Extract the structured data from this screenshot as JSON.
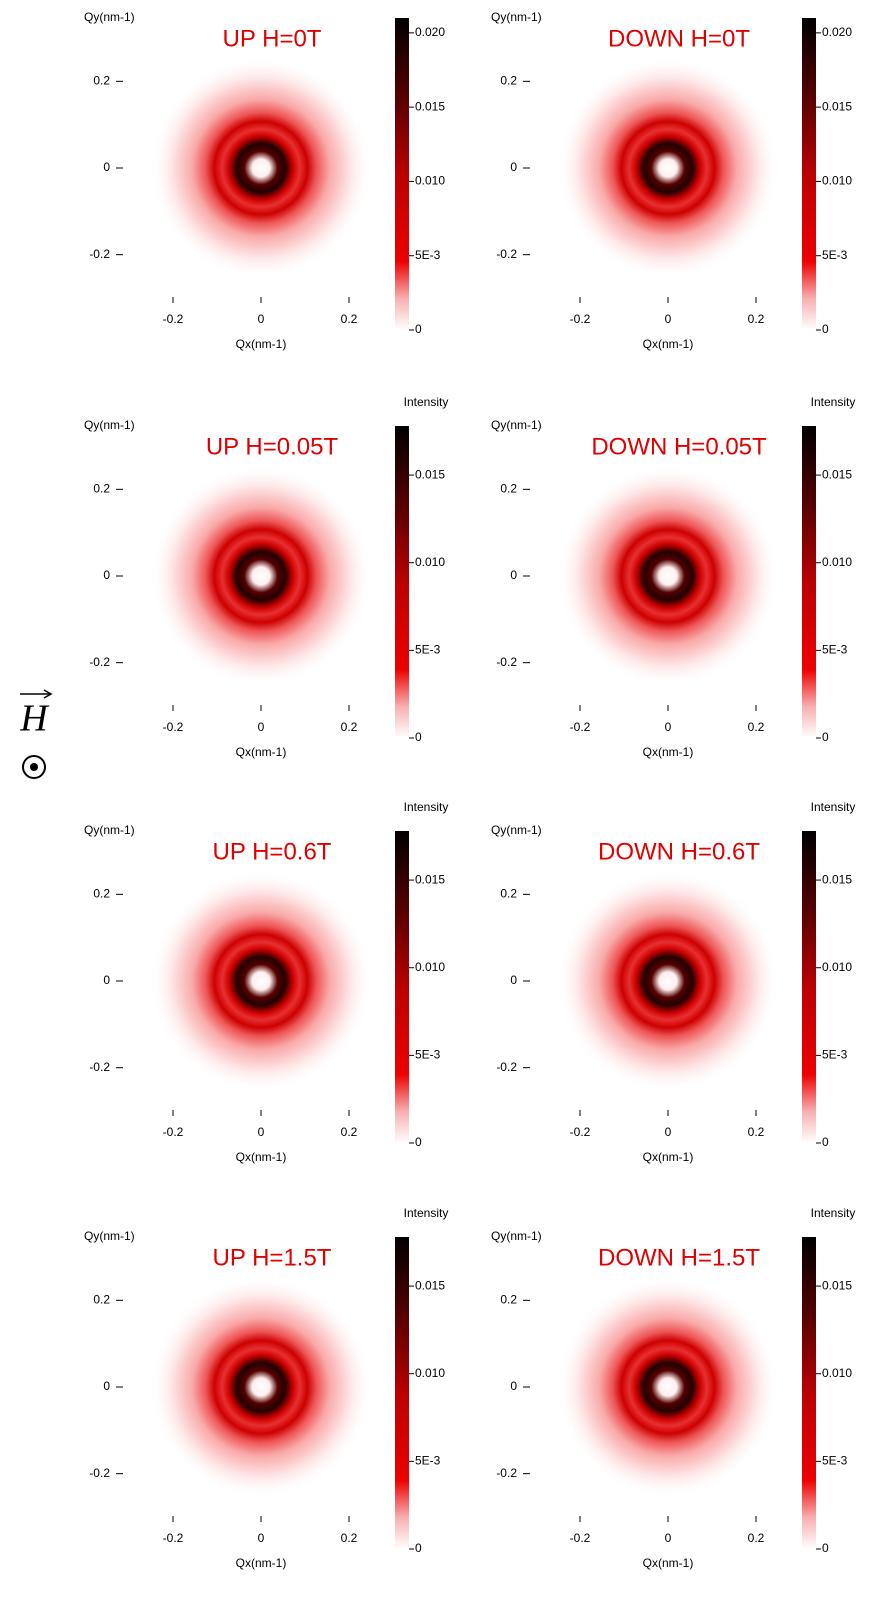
{
  "chart_data": [
    {
      "type": "heatmap",
      "title": "UP H=0T",
      "xlabel": "Qx(nm-1)",
      "ylabel": "Qy(nm-1)",
      "xlim": [
        -0.3,
        0.3
      ],
      "ylim": [
        -0.3,
        0.3
      ],
      "xticks": [
        -0.2,
        0,
        0.2
      ],
      "yticks": [
        -0.2,
        0,
        0.2
      ],
      "colorbar": {
        "lim": [
          0,
          0.021
        ],
        "ticks": [
          0,
          {
            "value": 0.005,
            "label": "5E-3"
          },
          {
            "value": 0.01,
            "label": "0.010"
          },
          {
            "value": 0.015,
            "label": "0.015"
          },
          {
            "value": 0.02,
            "label": "0.020"
          }
        ]
      }
    },
    {
      "type": "heatmap",
      "title": "DOWN H=0T",
      "xlabel": "Qx(nm-1)",
      "ylabel": "Qy(nm-1)",
      "xlim": [
        -0.3,
        0.3
      ],
      "ylim": [
        -0.3,
        0.3
      ],
      "xticks": [
        -0.2,
        0,
        0.2
      ],
      "yticks": [
        -0.2,
        0,
        0.2
      ],
      "colorbar": {
        "lim": [
          0,
          0.021
        ],
        "ticks": [
          0,
          {
            "value": 0.005,
            "label": "5E-3"
          },
          {
            "value": 0.01,
            "label": "0.010"
          },
          {
            "value": 0.015,
            "label": "0.015"
          },
          {
            "value": 0.02,
            "label": "0.020"
          }
        ]
      }
    },
    {
      "type": "heatmap",
      "title": "UP H=0.05T",
      "xlabel": "Qx(nm-1)",
      "ylabel": "Qy(nm-1)",
      "xlim": [
        -0.3,
        0.3
      ],
      "ylim": [
        -0.3,
        0.3
      ],
      "xticks": [
        -0.2,
        0,
        0.2
      ],
      "yticks": [
        -0.2,
        0,
        0.2
      ],
      "colorbar": {
        "label": "Intensity",
        "lim": [
          0,
          0.0178
        ],
        "ticks": [
          0,
          {
            "value": 0.005,
            "label": "5E-3"
          },
          {
            "value": 0.01,
            "label": "0.010"
          },
          {
            "value": 0.015,
            "label": "0.015"
          }
        ]
      }
    },
    {
      "type": "heatmap",
      "title": "DOWN H=0.05T",
      "xlabel": "Qx(nm-1)",
      "ylabel": "Qy(nm-1)",
      "xlim": [
        -0.3,
        0.3
      ],
      "ylim": [
        -0.3,
        0.3
      ],
      "xticks": [
        -0.2,
        0,
        0.2
      ],
      "yticks": [
        -0.2,
        0,
        0.2
      ],
      "colorbar": {
        "label": "Intensity",
        "lim": [
          0,
          0.0178
        ],
        "ticks": [
          0,
          {
            "value": 0.005,
            "label": "5E-3"
          },
          {
            "value": 0.01,
            "label": "0.010"
          },
          {
            "value": 0.015,
            "label": "0.015"
          }
        ]
      }
    },
    {
      "type": "heatmap",
      "title": "UP H=0.6T",
      "xlabel": "Qx(nm-1)",
      "ylabel": "Qy(nm-1)",
      "xlim": [
        -0.3,
        0.3
      ],
      "ylim": [
        -0.3,
        0.3
      ],
      "xticks": [
        -0.2,
        0,
        0.2
      ],
      "yticks": [
        -0.2,
        0,
        0.2
      ],
      "colorbar": {
        "label": "Intensity",
        "lim": [
          0,
          0.0178
        ],
        "ticks": [
          0,
          {
            "value": 0.005,
            "label": "5E-3"
          },
          {
            "value": 0.01,
            "label": "0.010"
          },
          {
            "value": 0.015,
            "label": "0.015"
          }
        ]
      }
    },
    {
      "type": "heatmap",
      "title": "DOWN H=0.6T",
      "xlabel": "Qx(nm-1)",
      "ylabel": "Qy(nm-1)",
      "xlim": [
        -0.3,
        0.3
      ],
      "ylim": [
        -0.3,
        0.3
      ],
      "xticks": [
        -0.2,
        0,
        0.2
      ],
      "yticks": [
        -0.2,
        0,
        0.2
      ],
      "colorbar": {
        "label": "Intensity",
        "lim": [
          0,
          0.0178
        ],
        "ticks": [
          0,
          {
            "value": 0.005,
            "label": "5E-3"
          },
          {
            "value": 0.01,
            "label": "0.010"
          },
          {
            "value": 0.015,
            "label": "0.015"
          }
        ]
      }
    },
    {
      "type": "heatmap",
      "title": "UP H=1.5T",
      "xlabel": "Qx(nm-1)",
      "ylabel": "Qy(nm-1)",
      "xlim": [
        -0.3,
        0.3
      ],
      "ylim": [
        -0.3,
        0.3
      ],
      "xticks": [
        -0.2,
        0,
        0.2
      ],
      "yticks": [
        -0.2,
        0,
        0.2
      ],
      "colorbar": {
        "label": "Intensity",
        "lim": [
          0,
          0.0178
        ],
        "ticks": [
          0,
          {
            "value": 0.005,
            "label": "5E-3"
          },
          {
            "value": 0.01,
            "label": "0.010"
          },
          {
            "value": 0.015,
            "label": "0.015"
          }
        ]
      }
    },
    {
      "type": "heatmap",
      "title": "DOWN H=1.5T",
      "xlabel": "Qx(nm-1)",
      "ylabel": "Qy(nm-1)",
      "xlim": [
        -0.3,
        0.3
      ],
      "ylim": [
        -0.3,
        0.3
      ],
      "xticks": [
        -0.2,
        0,
        0.2
      ],
      "yticks": [
        -0.2,
        0,
        0.2
      ],
      "colorbar": {
        "label": "Intensity",
        "lim": [
          0,
          0.0178
        ],
        "ticks": [
          0,
          {
            "value": 0.005,
            "label": "5E-3"
          },
          {
            "value": 0.01,
            "label": "0.010"
          },
          {
            "value": 0.015,
            "label": "0.015"
          }
        ]
      }
    }
  ],
  "annotation": "H"
}
